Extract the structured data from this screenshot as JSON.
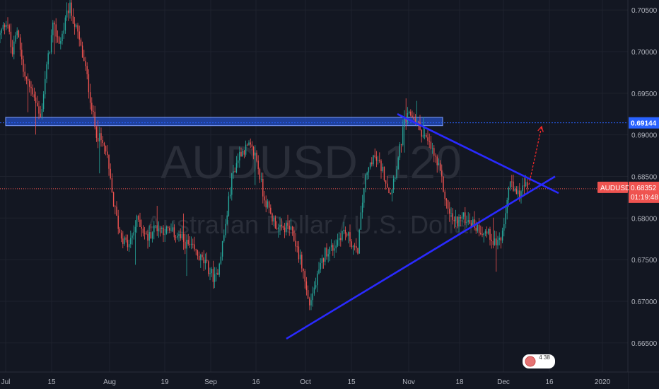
{
  "chart_data": {
    "type": "candlestick",
    "symbol": "AUDUSD",
    "interval": "120",
    "watermark_symbol": "AUDUSD, 120",
    "watermark_description": "Australian Dollar / U.S. Dollar",
    "ylim": [
      0.6615,
      0.7062
    ],
    "y_ticks": [
      {
        "value": 0.705,
        "label": "0.70500"
      },
      {
        "value": 0.7,
        "label": "0.70000"
      },
      {
        "value": 0.695,
        "label": "0.69500"
      },
      {
        "value": 0.69,
        "label": "0.69000"
      },
      {
        "value": 0.685,
        "label": "0.68500"
      },
      {
        "value": 0.68,
        "label": "0.68000"
      },
      {
        "value": 0.675,
        "label": "0.67500"
      },
      {
        "value": 0.67,
        "label": "0.67000"
      },
      {
        "value": 0.665,
        "label": "0.66500"
      }
    ],
    "x_ticks": [
      "Jul",
      "15",
      "Aug",
      "19",
      "Sep",
      "16",
      "Oct",
      "15",
      "Nov",
      "18",
      "Dec",
      "16",
      "2020"
    ],
    "price_path": [
      [
        0,
        0.702
      ],
      [
        10,
        0.704
      ],
      [
        17,
        0.6995
      ],
      [
        25,
        0.703
      ],
      [
        33,
        0.6975
      ],
      [
        40,
        0.696
      ],
      [
        48,
        0.695
      ],
      [
        57,
        0.6918
      ],
      [
        65,
        0.6975
      ],
      [
        75,
        0.703
      ],
      [
        85,
        0.701
      ],
      [
        98,
        0.7055
      ],
      [
        110,
        0.702
      ],
      [
        122,
        0.6975
      ],
      [
        135,
        0.6905
      ],
      [
        150,
        0.688
      ],
      [
        160,
        0.682
      ],
      [
        170,
        0.678
      ],
      [
        182,
        0.6765
      ],
      [
        195,
        0.68
      ],
      [
        208,
        0.6775
      ],
      [
        220,
        0.679
      ],
      [
        235,
        0.6785
      ],
      [
        250,
        0.678
      ],
      [
        262,
        0.677
      ],
      [
        275,
        0.676
      ],
      [
        290,
        0.6745
      ],
      [
        305,
        0.6725
      ],
      [
        318,
        0.6785
      ],
      [
        328,
        0.685
      ],
      [
        340,
        0.688
      ],
      [
        352,
        0.6885
      ],
      [
        362,
        0.6875
      ],
      [
        372,
        0.683
      ],
      [
        382,
        0.6805
      ],
      [
        395,
        0.6785
      ],
      [
        408,
        0.679
      ],
      [
        418,
        0.677
      ],
      [
        428,
        0.674
      ],
      [
        437,
        0.6695
      ],
      [
        448,
        0.6725
      ],
      [
        460,
        0.676
      ],
      [
        472,
        0.6765
      ],
      [
        485,
        0.6785
      ],
      [
        495,
        0.6775
      ],
      [
        505,
        0.6755
      ],
      [
        515,
        0.684
      ],
      [
        527,
        0.6875
      ],
      [
        540,
        0.686
      ],
      [
        552,
        0.683
      ],
      [
        563,
        0.687
      ],
      [
        572,
        0.6915
      ],
      [
        582,
        0.6925
      ],
      [
        592,
        0.691
      ],
      [
        602,
        0.6895
      ],
      [
        612,
        0.688
      ],
      [
        622,
        0.6855
      ],
      [
        632,
        0.6815
      ],
      [
        642,
        0.6795
      ],
      [
        652,
        0.68
      ],
      [
        662,
        0.68
      ],
      [
        672,
        0.679
      ],
      [
        682,
        0.6785
      ],
      [
        692,
        0.678
      ],
      [
        702,
        0.677
      ],
      [
        712,
        0.678
      ],
      [
        720,
        0.6845
      ],
      [
        730,
        0.6825
      ],
      [
        740,
        0.6838
      ],
      [
        748,
        0.6835
      ]
    ],
    "price_line": {
      "value": 0.68352,
      "label": "0.68352",
      "symbol_label": "AUDUSD",
      "countdown": "01:19:48",
      "color": "#ef5350"
    },
    "target_line": {
      "value": 0.69144,
      "label": "0.69144",
      "color": "#2962ff"
    },
    "resistance_zone": {
      "from": 0.6911,
      "to": 0.6921,
      "color": "#2962ff"
    },
    "trendlines": [
      {
        "name": "support-trendline",
        "from": [
          405,
          0.6655
        ],
        "to": [
          785,
          0.685
        ],
        "color": "#2a2aff"
      },
      {
        "name": "resistance-trendline",
        "from": [
          562,
          0.6925
        ],
        "to": [
          790,
          0.683
        ],
        "color": "#2a2aff"
      }
    ],
    "projection_arrow": {
      "from": [
        748,
        0.684
      ],
      "to": [
        766,
        0.691
      ],
      "color": "#ff2a2a"
    },
    "colors": {
      "up": "#26a69a",
      "down": "#ef5350",
      "background": "#131722",
      "grid": "#1e222d",
      "axis_text": "#b2b5be"
    },
    "grid": true
  },
  "ui": {
    "bottom_icon_text": "4 38"
  }
}
